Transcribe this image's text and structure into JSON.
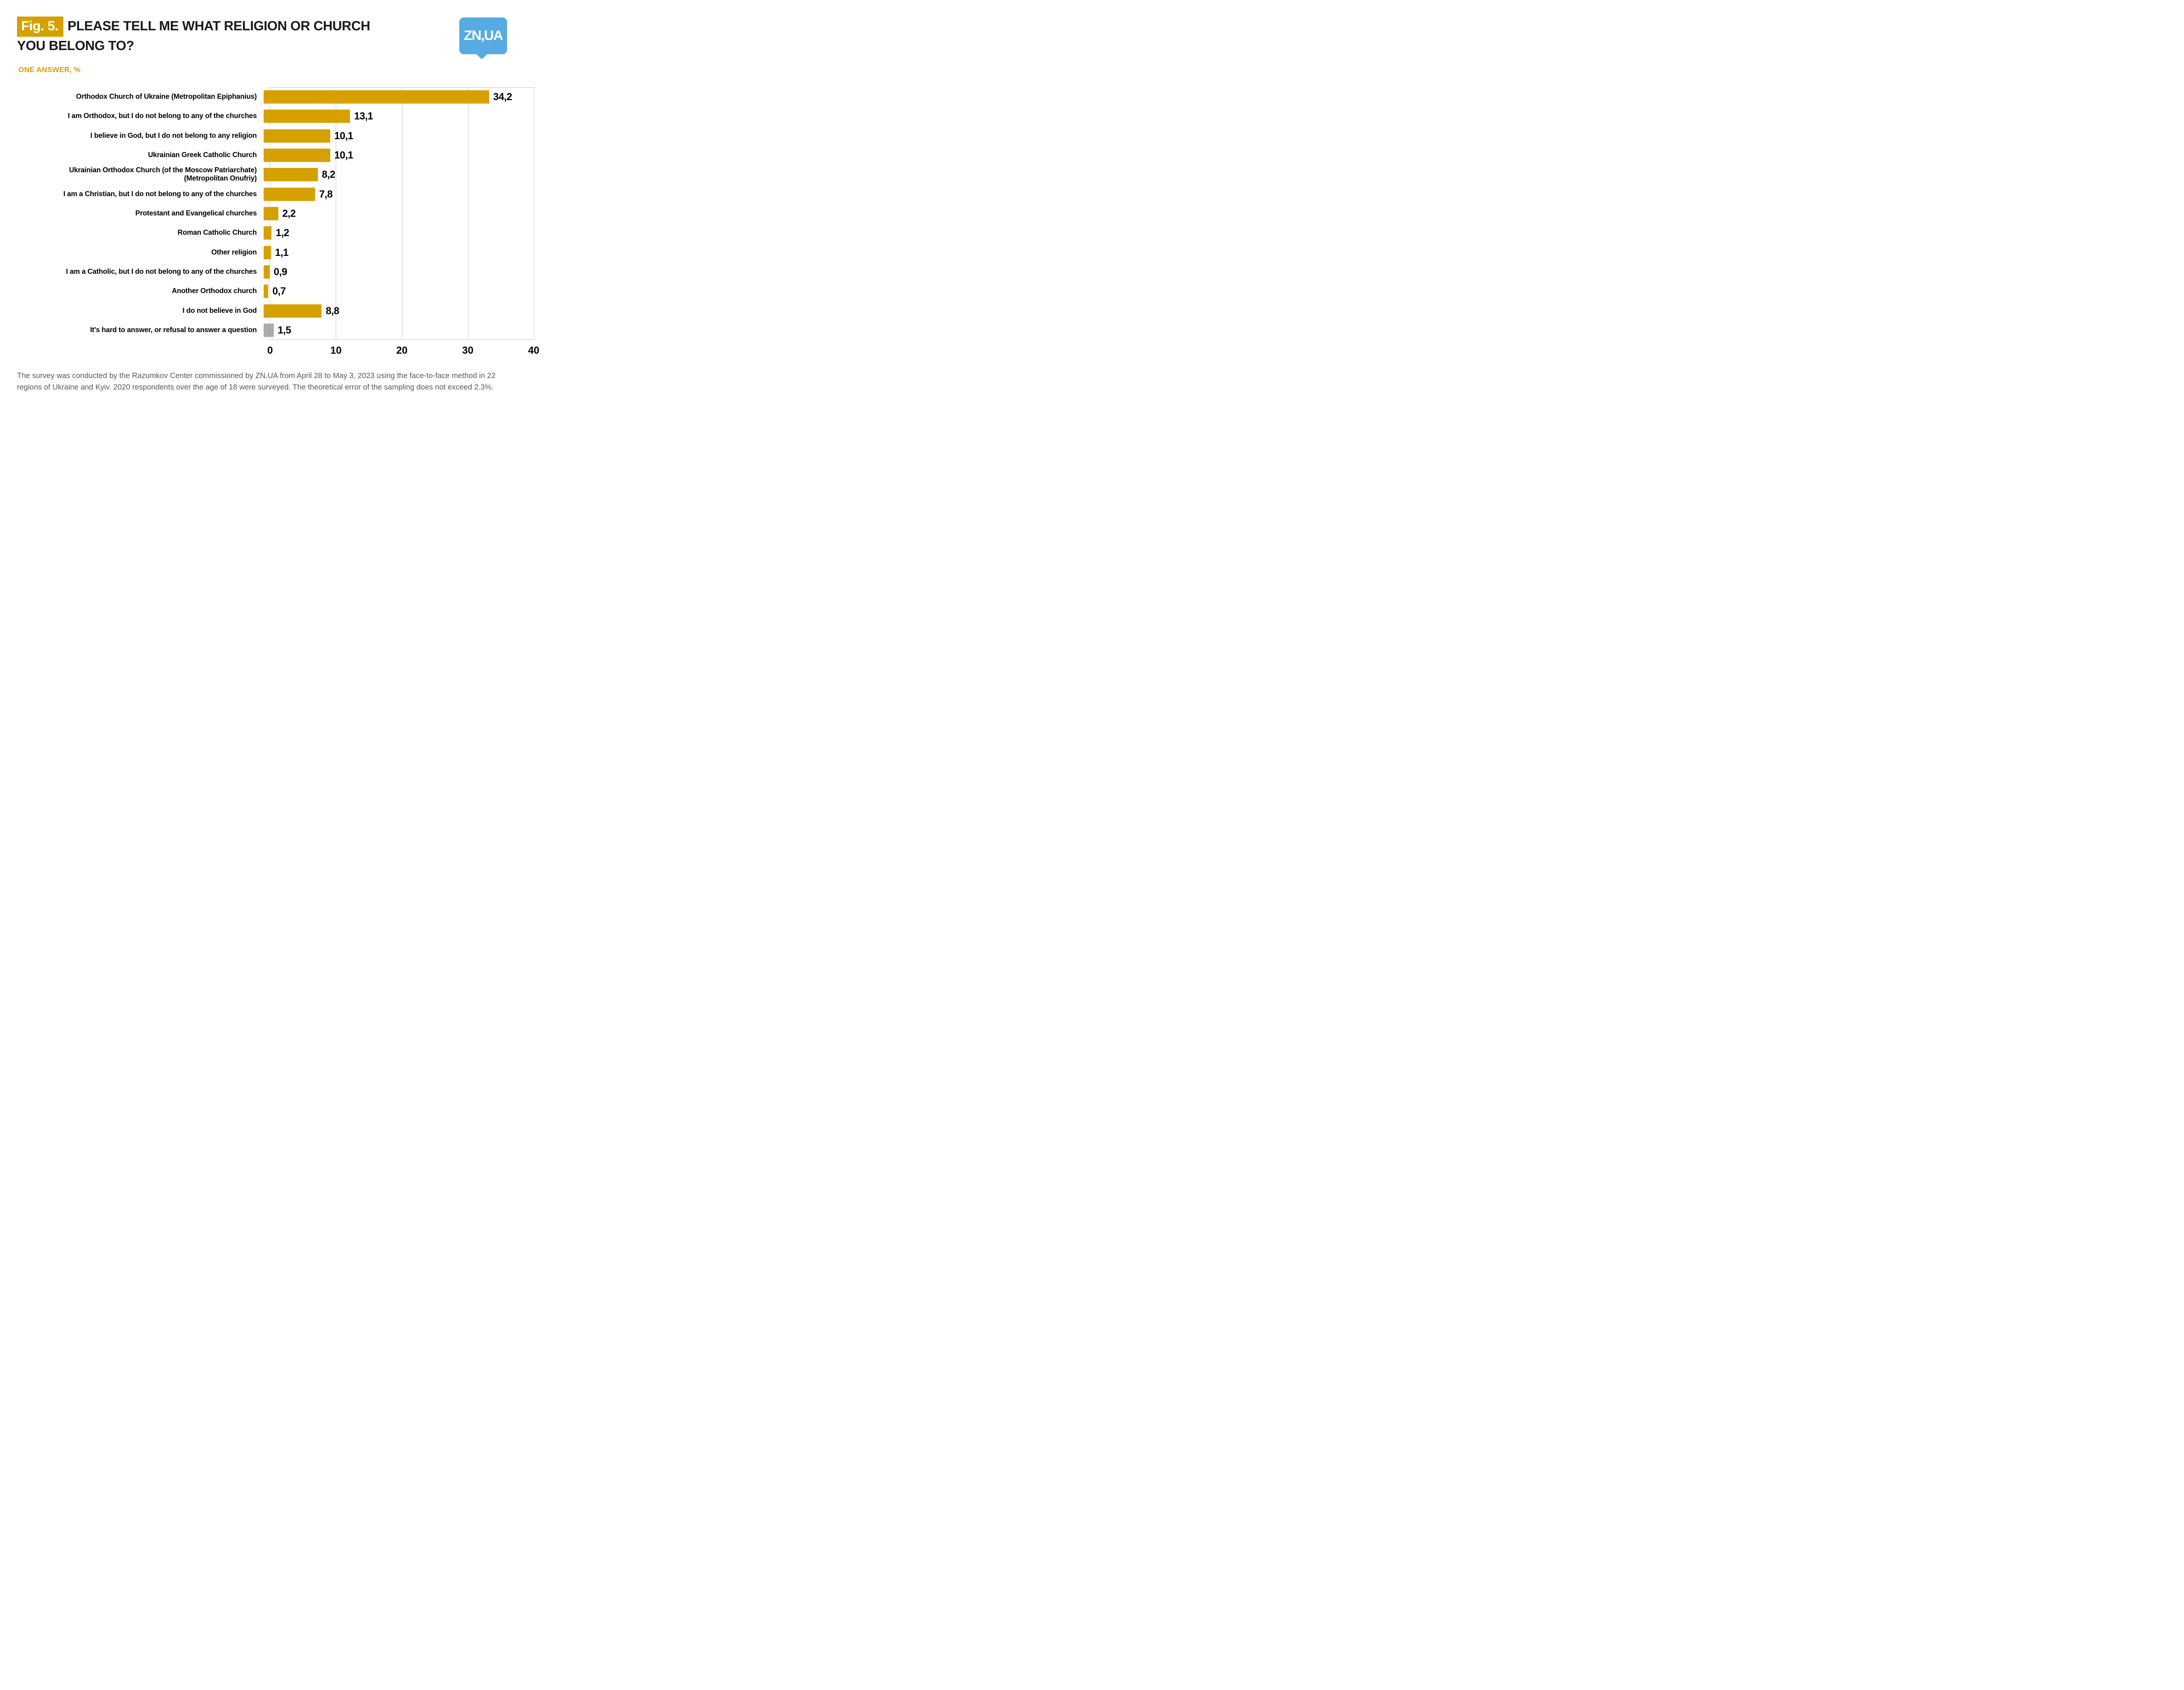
{
  "header": {
    "fig_label": "Fig. 5.",
    "title_line1": "PLEASE TELL ME WHAT RELIGION OR CHURCH",
    "title_line2": "YOU BELONG TO?",
    "subtitle": "ONE ANSWER, %"
  },
  "logo": {
    "text": "ZN,UA",
    "bg_color": "#58AAE3",
    "text_color": "#FFFFFF"
  },
  "chart_data": {
    "type": "bar",
    "orientation": "horizontal",
    "title": "PLEASE TELL ME WHAT RELIGION OR CHURCH YOU BELONG TO?",
    "subtitle": "ONE ANSWER, %",
    "xlabel": "",
    "ylabel": "",
    "xlim": [
      0,
      40
    ],
    "x_ticks": [
      "0",
      "10",
      "20",
      "30",
      "40"
    ],
    "grid": "vertical-gridlines-on",
    "legend": "none",
    "categories": [
      "Orthodox Church of Ukraine (Metropolitan Epiphanius)",
      "I am Orthodox, but I do not belong to any of the churches",
      "I believe in God, but I do not belong to any religion",
      "Ukrainian Greek Catholic Church",
      "Ukrainian Orthodox Church (of the Moscow Patriarchate)\n(Metropolitan Onufriy)",
      "I am a Christian, but I do not belong to any of the churches",
      "Protestant and Evangelical churches",
      "Roman Catholic Church",
      "Other religion",
      "I am a Catholic, but I do not belong to any of the churches",
      "Another Orthodox church",
      "I do not believe in God",
      "It's hard to answer, or refusal to answer a question"
    ],
    "values": [
      34.2,
      13.1,
      10.1,
      10.1,
      8.2,
      7.8,
      2.2,
      1.2,
      1.1,
      0.9,
      0.7,
      8.8,
      1.5
    ],
    "display_values": [
      "34,2",
      "13,1",
      "10,1",
      "10,1",
      "8,2",
      "7,8",
      "2,2",
      "1,2",
      "1,1",
      "0,9",
      "0,7",
      "8,8",
      "1,5"
    ],
    "colors": [
      "#D5A000",
      "#D5A000",
      "#D5A000",
      "#D5A000",
      "#D5A000",
      "#D5A000",
      "#D5A000",
      "#D5A000",
      "#D5A000",
      "#D5A000",
      "#D5A000",
      "#D5A000",
      "#ABABAB"
    ],
    "bar_color_default": "#D5A000",
    "bar_color_no_answer": "#ABABAB",
    "gridline_color": "#C9C9C9"
  },
  "footer": {
    "text": "The survey was conducted by the Razumkov Center commissioned by ZN.UA from April 28 to May 3, 2023 using the face-to-face method in 22 regions of Ukraine and Kyiv. 2020 respondents over the age of 18 were surveyed. The theoretical error of the sampling does not exceed 2.3%."
  },
  "colors": {
    "accent_gold": "#D5A000",
    "logo_blue": "#58AAE3",
    "title_text": "#1A1A1A",
    "footer_text": "#58595B"
  }
}
